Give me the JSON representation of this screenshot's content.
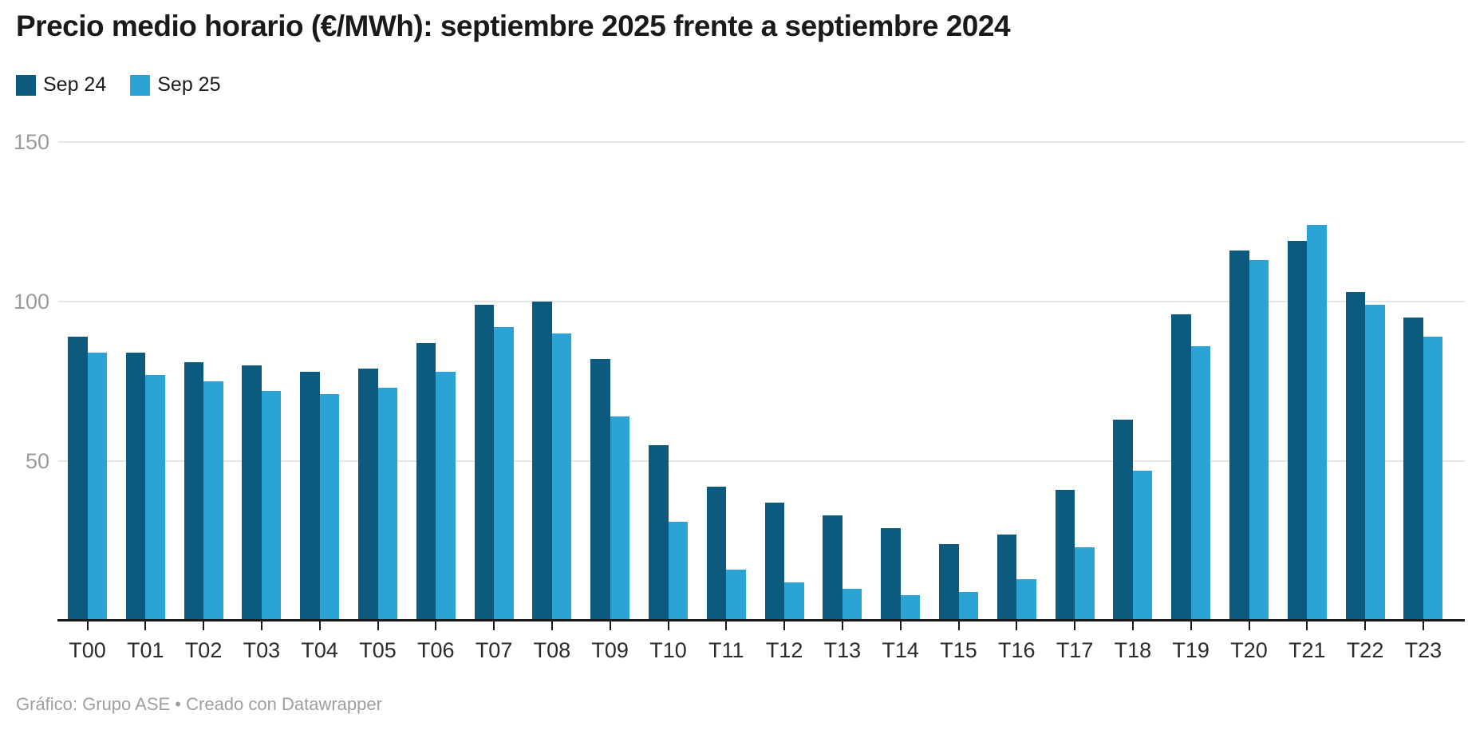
{
  "title": "Precio medio horario (€/MWh): septiembre 2025 frente a septiembre 2024",
  "legend": [
    {
      "label": "Sep 24",
      "color": "#0c5a7e"
    },
    {
      "label": "Sep 25",
      "color": "#2ba3d4"
    }
  ],
  "footer": "Gráfico: Grupo ASE • Creado con Datawrapper",
  "colors": {
    "series_dark": "#0c5a7e",
    "series_light": "#2ba3d4",
    "gridline": "#e7e7e7",
    "axis_line": "#1a1a1a",
    "ytick_text": "#9b9b9b",
    "xtick_text": "#2b2b2b",
    "footer_text": "#9e9e9e"
  },
  "chart_data": {
    "type": "bar",
    "title": "Precio medio horario (€/MWh): septiembre 2025 frente a septiembre 2024",
    "xlabel": "",
    "ylabel": "€/MWh",
    "categories": [
      "T00",
      "T01",
      "T02",
      "T03",
      "T04",
      "T05",
      "T06",
      "T07",
      "T08",
      "T09",
      "T10",
      "T11",
      "T12",
      "T13",
      "T14",
      "T15",
      "T16",
      "T17",
      "T18",
      "T19",
      "T20",
      "T21",
      "T22",
      "T23"
    ],
    "series": [
      {
        "name": "Sep 24",
        "color": "#0c5a7e",
        "values": [
          89,
          84,
          81,
          80,
          78,
          79,
          87,
          99,
          100,
          82,
          55,
          42,
          37,
          33,
          29,
          24,
          27,
          41,
          63,
          96,
          116,
          119,
          103,
          95
        ]
      },
      {
        "name": "Sep 25",
        "color": "#2ba3d4",
        "values": [
          84,
          77,
          75,
          72,
          71,
          73,
          78,
          92,
          90,
          64,
          31,
          16,
          12,
          10,
          8,
          9,
          13,
          23,
          47,
          86,
          113,
          124,
          99,
          89
        ]
      }
    ],
    "ylim": [
      0,
      150
    ],
    "yticks": [
      150,
      100,
      50
    ],
    "grid": "horizontal",
    "legend_position": "top-left"
  }
}
